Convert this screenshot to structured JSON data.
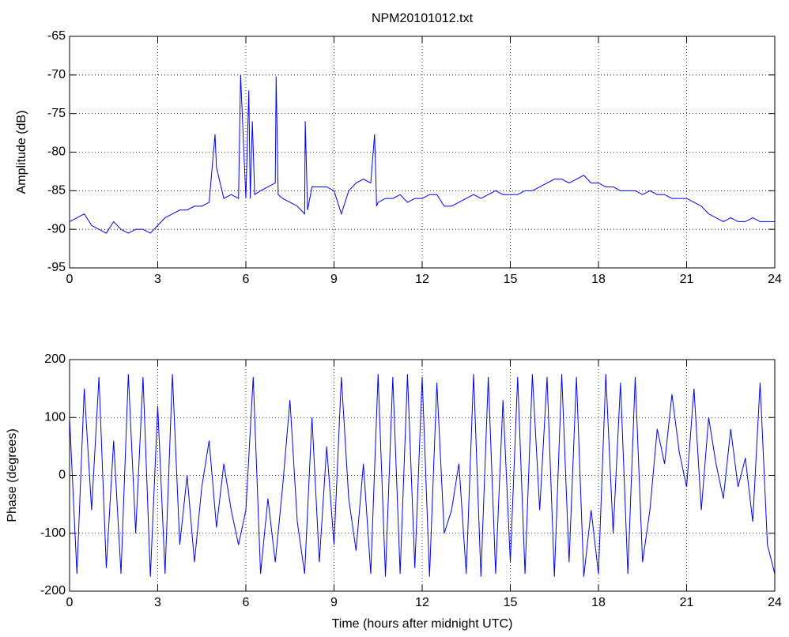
{
  "chart_data": [
    {
      "type": "line",
      "title": "NPM20101012.txt",
      "y_label": "Amplitude (dB)",
      "x": [
        0,
        0.25,
        0.5,
        0.75,
        1,
        1.25,
        1.5,
        1.75,
        2,
        2.25,
        2.5,
        2.75,
        3,
        3.25,
        3.5,
        3.75,
        4,
        4.25,
        4.5,
        4.75,
        4.95,
        5,
        5.25,
        5.5,
        5.75,
        5.82,
        6,
        6.1,
        6.15,
        6.22,
        6.3,
        6.5,
        6.75,
        7,
        7.03,
        7.1,
        7.25,
        7.5,
        7.75,
        8,
        8.02,
        8.1,
        8.25,
        8.5,
        8.75,
        9,
        9.25,
        9.5,
        9.75,
        10,
        10.25,
        10.38,
        10.45,
        10.5,
        10.75,
        11,
        11.25,
        11.5,
        11.75,
        12,
        12.25,
        12.5,
        12.75,
        13,
        13.25,
        13.5,
        13.75,
        14,
        14.25,
        14.5,
        14.75,
        15,
        15.25,
        15.5,
        15.75,
        16,
        16.25,
        16.5,
        16.75,
        17,
        17.25,
        17.5,
        17.75,
        18,
        18.25,
        18.5,
        18.75,
        19,
        19.25,
        19.5,
        19.75,
        20,
        20.25,
        20.5,
        20.75,
        21,
        21.25,
        21.5,
        21.75,
        22,
        22.25,
        22.5,
        22.75,
        23,
        23.25,
        23.5,
        23.75,
        24
      ],
      "series": [
        {
          "color": "#0000ff",
          "values": [
            -89,
            -88.5,
            -88,
            -89.5,
            -90,
            -90.5,
            -89,
            -90,
            -90.5,
            -90,
            -90,
            -90.5,
            -89.5,
            -88.5,
            -88,
            -87.5,
            -87.5,
            -87,
            -87,
            -86.5,
            -77.7,
            -82,
            -86,
            -85.5,
            -86,
            -70,
            -86,
            -72,
            -86,
            -76,
            -85.5,
            -85,
            -84.5,
            -84,
            -70.2,
            -85.5,
            -86,
            -86.5,
            -87,
            -88,
            -76,
            -87.5,
            -84.5,
            -84.5,
            -84.5,
            -85,
            -88,
            -85,
            -84,
            -83.5,
            -84,
            -77.7,
            -87,
            -86.5,
            -86,
            -86,
            -85.5,
            -86.5,
            -86,
            -86,
            -85.5,
            -85.5,
            -87,
            -87,
            -86.5,
            -86,
            -85.5,
            -86,
            -85.5,
            -85,
            -85.5,
            -85.5,
            -85.5,
            -85,
            -85,
            -84.5,
            -84,
            -83.5,
            -83.5,
            -84,
            -83.5,
            -83,
            -84,
            -84,
            -84.5,
            -84.5,
            -85,
            -85,
            -85,
            -85.5,
            -85,
            -85.5,
            -85.5,
            -86,
            -86,
            -86,
            -86.5,
            -87,
            -88,
            -88.5,
            -89,
            -88.5,
            -89,
            -89,
            -88.5,
            -89,
            -89,
            -89
          ]
        }
      ],
      "xlim": [
        0,
        24
      ],
      "xticks": [
        0,
        3,
        6,
        9,
        12,
        15,
        18,
        21,
        24
      ],
      "ylim": [
        -95,
        -65
      ],
      "yticks": [
        -95,
        -90,
        -85,
        -80,
        -75,
        -70,
        -65
      ],
      "grid": true
    },
    {
      "type": "line",
      "x_label": "Time (hours after midnight UTC)",
      "y_label": "Phase (degrees)",
      "x": [
        0,
        0.25,
        0.5,
        0.75,
        1,
        1.25,
        1.5,
        1.75,
        2,
        2.25,
        2.5,
        2.75,
        3,
        3.25,
        3.5,
        3.75,
        4,
        4.25,
        4.5,
        4.75,
        5,
        5.25,
        5.5,
        5.75,
        6,
        6.25,
        6.5,
        6.75,
        7,
        7.25,
        7.5,
        7.75,
        8,
        8.25,
        8.5,
        8.75,
        9,
        9.25,
        9.5,
        9.75,
        10,
        10.25,
        10.5,
        10.75,
        11,
        11.25,
        11.5,
        11.75,
        12,
        12.25,
        12.5,
        12.75,
        13,
        13.25,
        13.5,
        13.75,
        14,
        14.25,
        14.5,
        14.75,
        15,
        15.25,
        15.5,
        15.75,
        16,
        16.25,
        16.5,
        16.75,
        17,
        17.25,
        17.5,
        17.75,
        18,
        18.25,
        18.5,
        18.75,
        19,
        19.25,
        19.5,
        19.75,
        20,
        20.25,
        20.5,
        20.75,
        21,
        21.25,
        21.5,
        21.75,
        22,
        22.25,
        22.5,
        22.75,
        23,
        23.25,
        23.5,
        23.75,
        24
      ],
      "series": [
        {
          "color": "#0000ff",
          "values": [
            100,
            -170,
            150,
            -60,
            170,
            -160,
            60,
            -170,
            175,
            -100,
            170,
            -175,
            120,
            -170,
            175,
            -120,
            0,
            -150,
            -20,
            60,
            -90,
            20,
            -60,
            -120,
            -60,
            170,
            -170,
            -40,
            -150,
            -20,
            130,
            -80,
            -170,
            100,
            -150,
            50,
            -120,
            170,
            -40,
            -130,
            20,
            -170,
            175,
            -175,
            170,
            -170,
            175,
            -160,
            170,
            -175,
            160,
            -100,
            -60,
            20,
            -170,
            175,
            -175,
            170,
            -170,
            130,
            -150,
            170,
            -170,
            175,
            -60,
            170,
            -175,
            175,
            -150,
            170,
            -175,
            -60,
            -170,
            175,
            -100,
            160,
            -170,
            170,
            -150,
            -60,
            80,
            20,
            140,
            40,
            -20,
            150,
            -60,
            100,
            20,
            -40,
            80,
            -20,
            30,
            -80,
            160,
            -120,
            -170
          ]
        }
      ],
      "xlim": [
        0,
        24
      ],
      "xticks": [
        0,
        3,
        6,
        9,
        12,
        15,
        18,
        21,
        24
      ],
      "ylim": [
        -200,
        200
      ],
      "yticks": [
        -200,
        -100,
        0,
        100,
        200
      ],
      "grid": true
    }
  ]
}
